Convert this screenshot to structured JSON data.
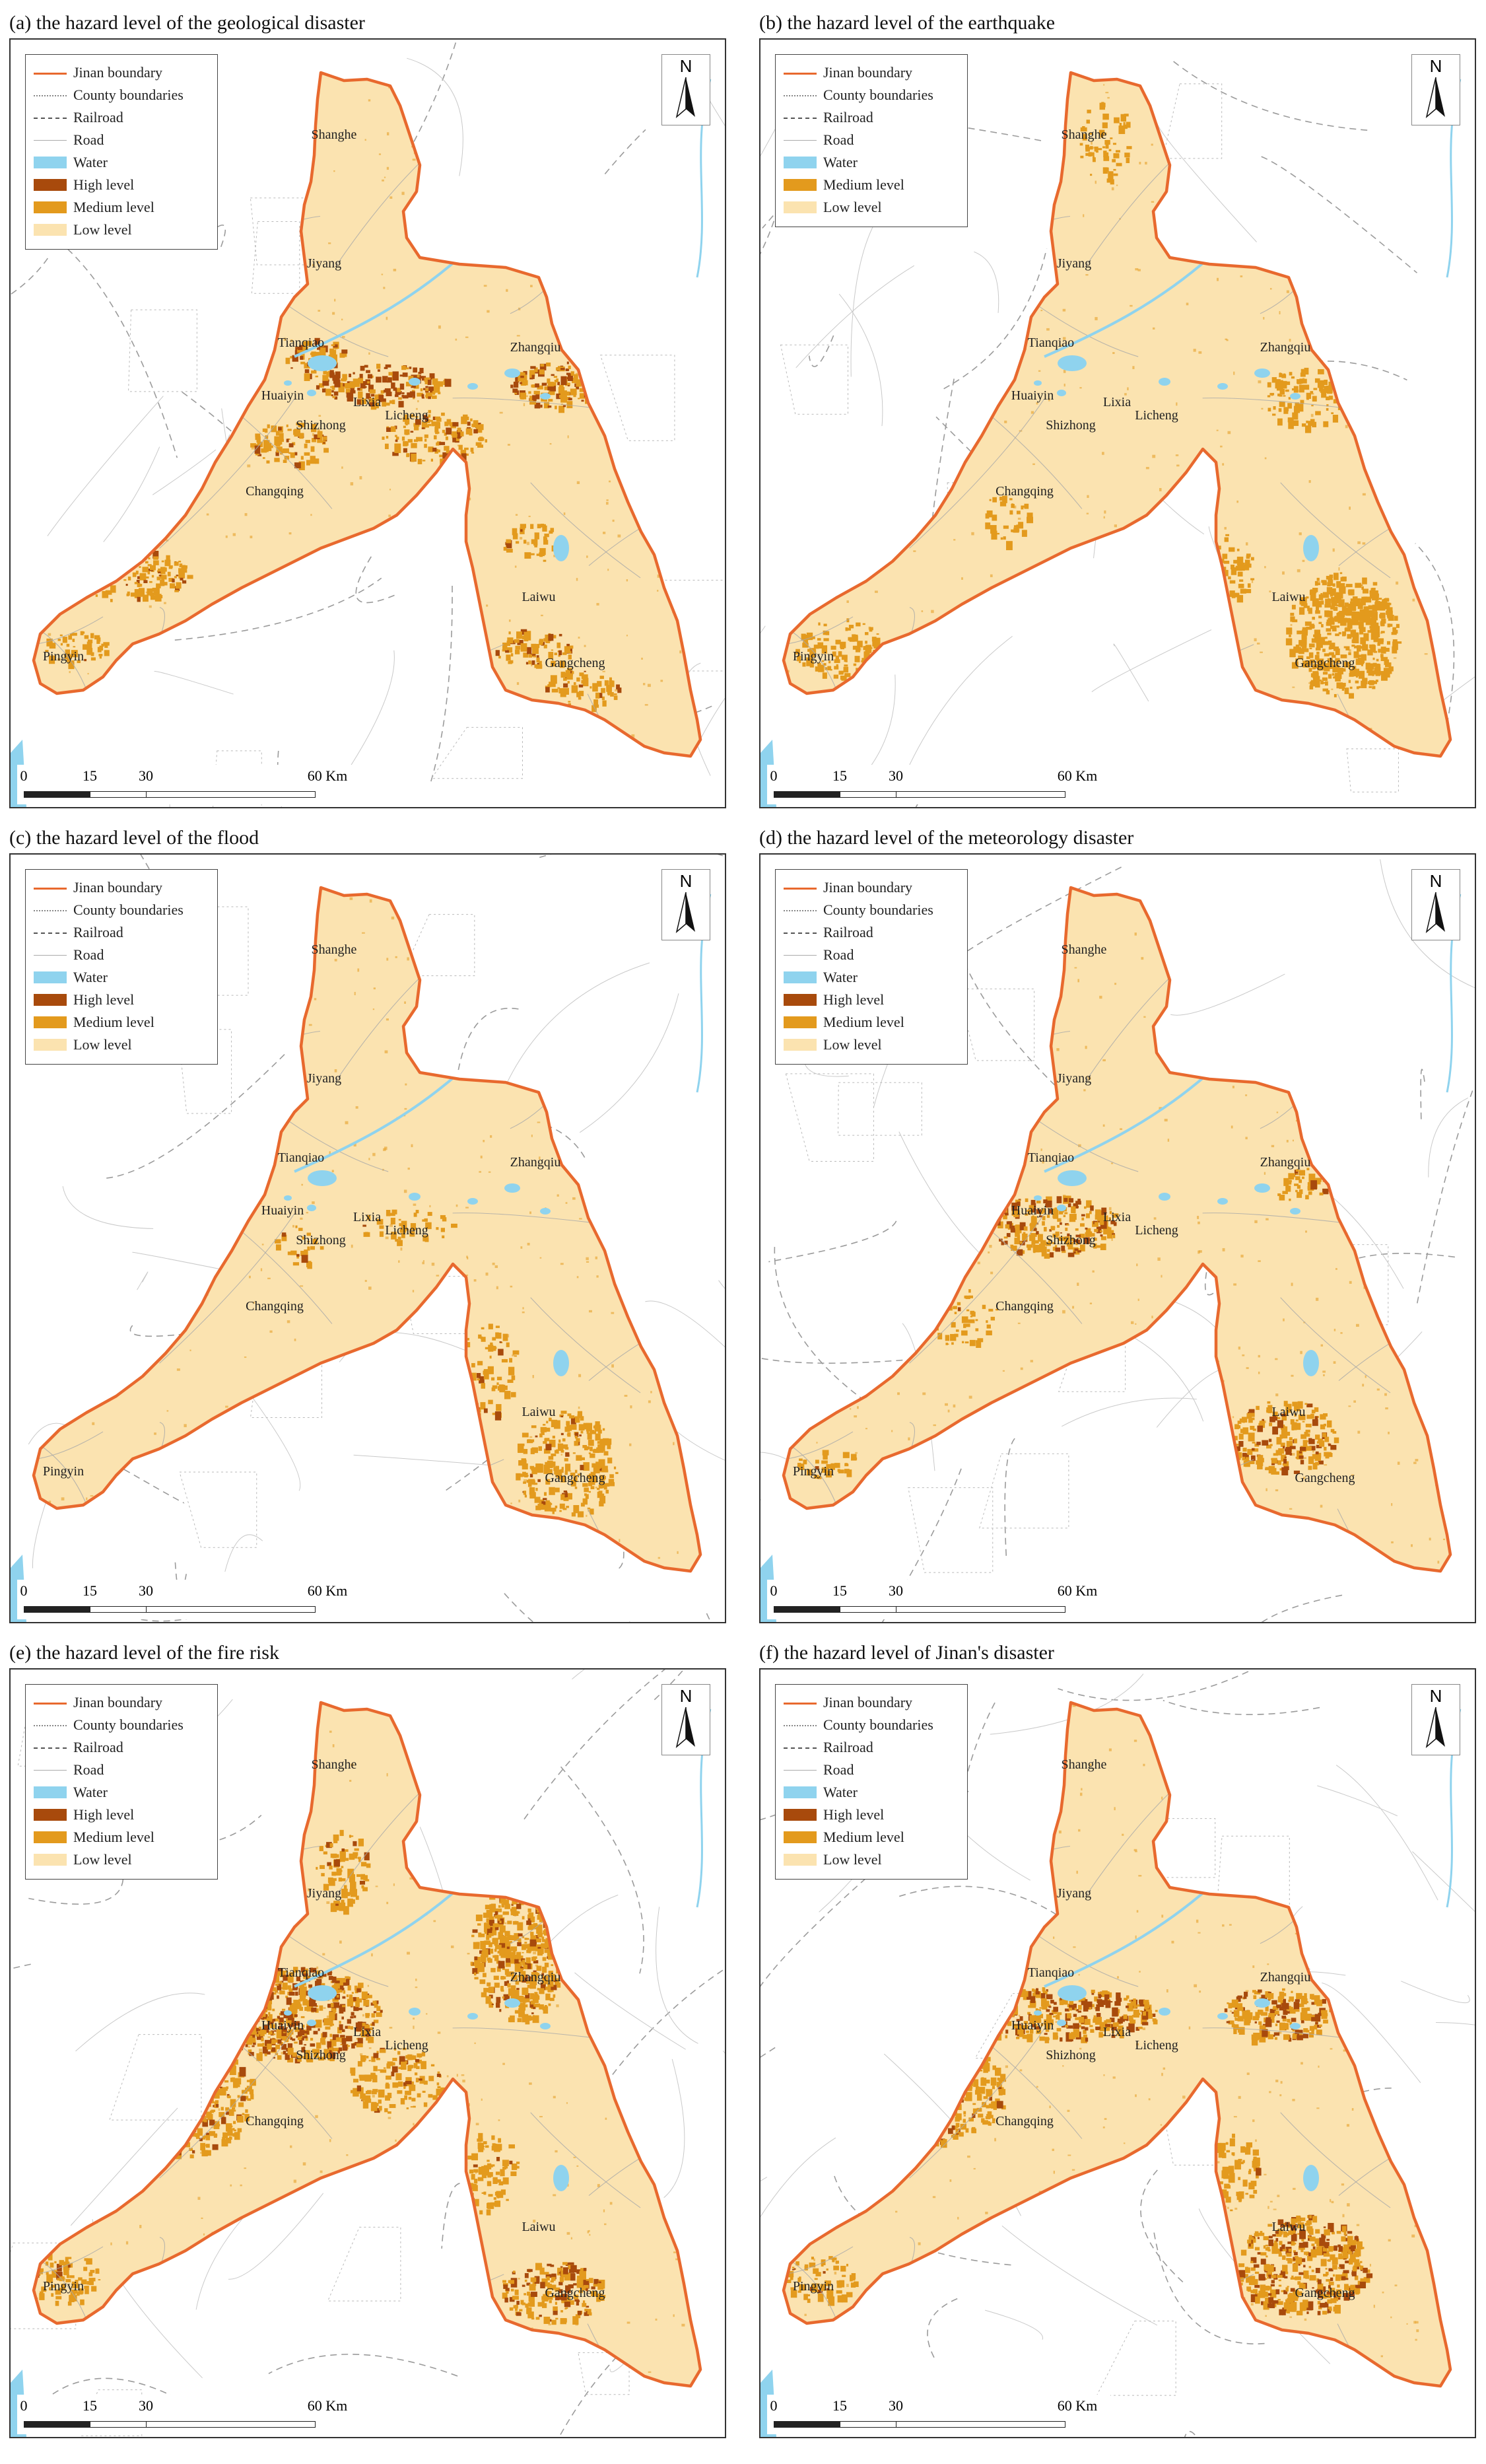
{
  "panels": [
    {
      "title": "(a) the hazard level of the geological disaster",
      "legend": [
        "Jinan boundary",
        "County boundaries",
        "Railroad",
        "Road",
        "Water",
        "High level",
        "Medium level",
        "Low level"
      ]
    },
    {
      "title": "(b) the hazard  level of the earthquake",
      "legend": [
        "Jinan boundary",
        "County boundaries",
        "Railroad",
        "Road",
        "Water",
        "Medium level",
        "Low level"
      ]
    },
    {
      "title": "(c) the hazard  level of the flood",
      "legend": [
        "Jinan boundary",
        "County boundaries",
        "Railroad",
        "Road",
        "Water",
        "High level",
        "Medium level",
        "Low level"
      ]
    },
    {
      "title": "(d) the hazard level of the meteorology disaster",
      "legend": [
        "Jinan boundary",
        "County boundaries",
        "Railroad",
        "Road",
        "Water",
        "High level",
        "Medium level",
        "Low level"
      ]
    },
    {
      "title": "(e) the hazard level of the fire risk",
      "legend": [
        "Jinan boundary",
        "County boundaries",
        "Railroad",
        "Road",
        "Water",
        "High level",
        "Medium level",
        "Low level"
      ]
    },
    {
      "title": "(f) the hazard level of Jinan's disaster",
      "legend": [
        "Jinan boundary",
        "County boundaries",
        "Railroad",
        "Road",
        "Water",
        "High level",
        "Medium level",
        "Low level"
      ]
    }
  ],
  "place_names": [
    "Shanghe",
    "Jiyang",
    "Tianqiao",
    "Zhangqiu",
    "Huaiyin",
    "Lixia",
    "Licheng",
    "Shizhong",
    "Changqing",
    "Laiwu",
    "Pingyin",
    "Gangcheng"
  ],
  "north_label": "N",
  "scale": {
    "ticks": [
      "0",
      "15",
      "30",
      "60 Km"
    ]
  },
  "colors": {
    "boundary": "#e8692e",
    "low": "#fbe3b0",
    "medium": "#e39a1d",
    "high": "#a84a0c",
    "water": "#8fd3ee"
  }
}
